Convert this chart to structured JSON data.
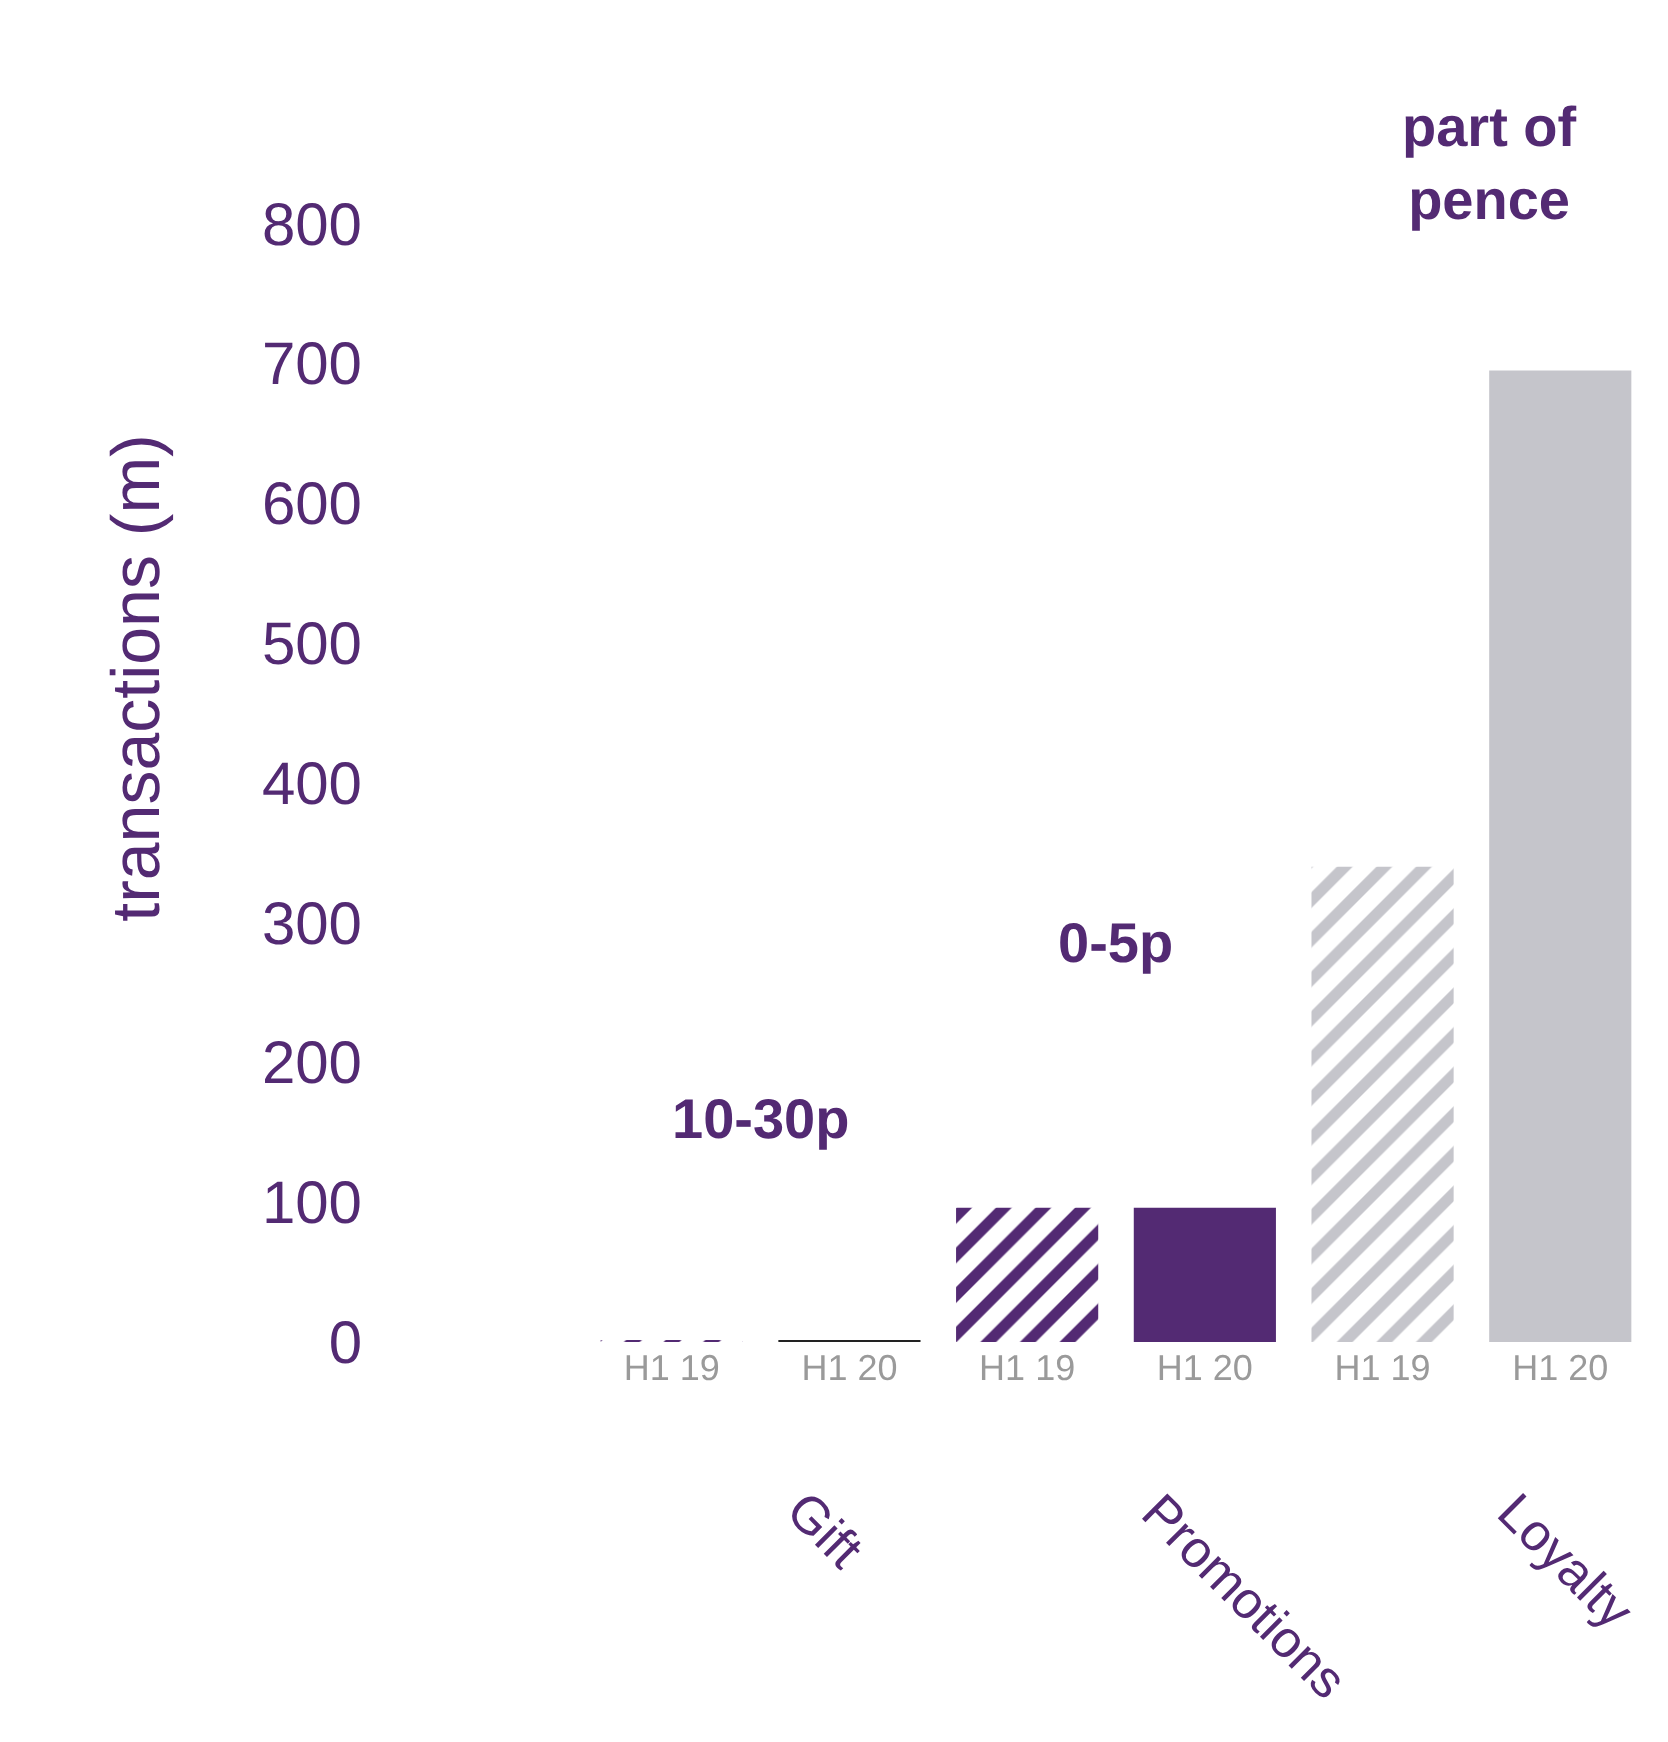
{
  "chart_data": {
    "type": "bar",
    "ylabel": "transactions (m)",
    "categories": [
      "H1 19",
      "H1 20",
      "H1 19",
      "H1 20",
      "H1 19",
      "H1 20"
    ],
    "values": [
      1,
      1,
      96,
      96,
      340,
      695
    ],
    "colors": [
      "#532a73",
      "#222222",
      "#532a73",
      "#532a73",
      "#c5c5cb",
      "#c5c5cb"
    ],
    "ylim": [
      0,
      950
    ],
    "yticks": [
      0,
      100,
      200,
      300,
      400,
      500,
      600,
      700,
      800
    ],
    "annotations": [
      "Gift",
      "Promotions",
      "Loyalty",
      "10-30p",
      "0-5p",
      "part of pence"
    ]
  }
}
